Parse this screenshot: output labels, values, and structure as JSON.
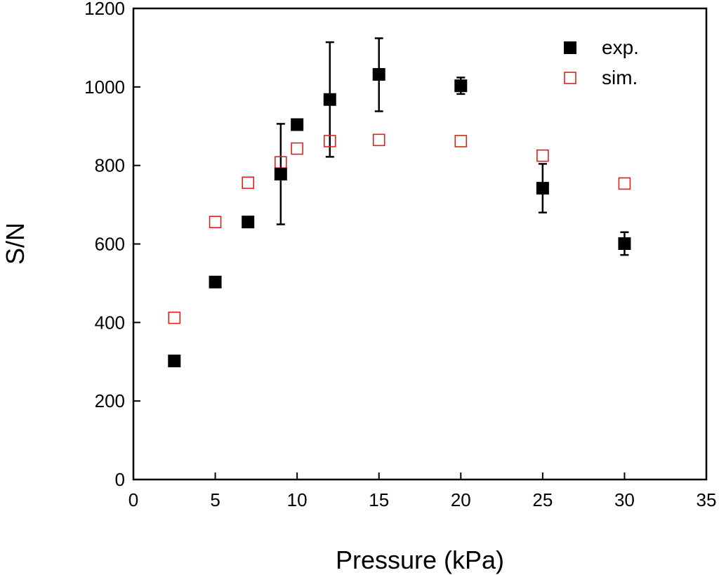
{
  "chart_data": {
    "type": "scatter",
    "title": "",
    "xlabel": "Pressure (kPa)",
    "ylabel": "S/N",
    "xlim": [
      0,
      35
    ],
    "ylim": [
      0,
      1200
    ],
    "xticks": [
      0,
      5,
      10,
      15,
      20,
      25,
      30,
      35
    ],
    "yticks": [
      0,
      200,
      400,
      600,
      800,
      1000,
      1200
    ],
    "legend_position": "top-right",
    "series": [
      {
        "name": "exp.",
        "marker": "filled-square",
        "color": "#000000",
        "points": [
          {
            "x": 2.5,
            "y": 302
          },
          {
            "x": 5,
            "y": 503
          },
          {
            "x": 7,
            "y": 656
          },
          {
            "x": 9,
            "y": 778,
            "err_low": 650,
            "err_high": 906
          },
          {
            "x": 10,
            "y": 904
          },
          {
            "x": 12,
            "y": 968,
            "err_low": 822,
            "err_high": 1114
          },
          {
            "x": 15,
            "y": 1032,
            "err_low": 938,
            "err_high": 1124
          },
          {
            "x": 20,
            "y": 1003,
            "err_low": 982,
            "err_high": 1024
          },
          {
            "x": 25,
            "y": 742,
            "err_low": 680,
            "err_high": 804
          },
          {
            "x": 30,
            "y": 601,
            "err_low": 572,
            "err_high": 630
          }
        ]
      },
      {
        "name": "sim.",
        "marker": "open-square",
        "color": "#e0201b",
        "points": [
          {
            "x": 2.5,
            "y": 412
          },
          {
            "x": 5,
            "y": 656
          },
          {
            "x": 7,
            "y": 756
          },
          {
            "x": 9,
            "y": 808
          },
          {
            "x": 10,
            "y": 843
          },
          {
            "x": 12,
            "y": 862
          },
          {
            "x": 15,
            "y": 865
          },
          {
            "x": 20,
            "y": 862
          },
          {
            "x": 25,
            "y": 825
          },
          {
            "x": 30,
            "y": 754
          }
        ]
      }
    ]
  }
}
